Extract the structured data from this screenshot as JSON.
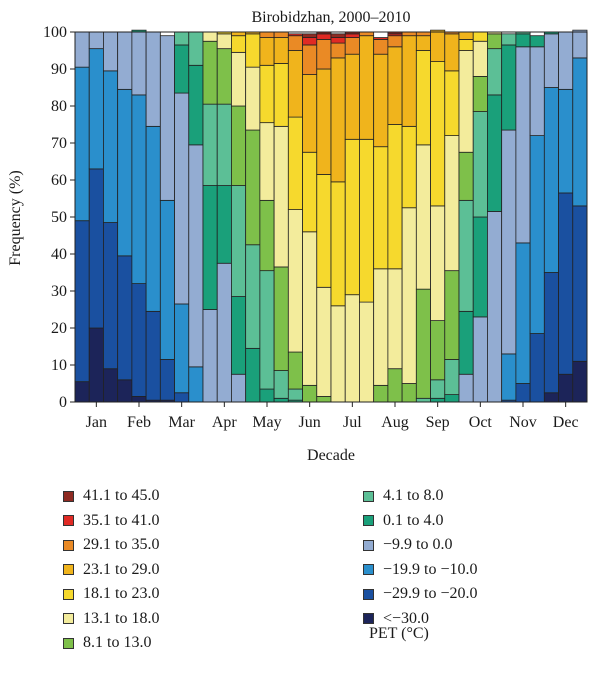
{
  "chart_data": {
    "type": "bar",
    "stacked": true,
    "title": "Birobidzhan, 2000–2010",
    "xlabel": "Decade",
    "ylabel": "Frequency (%)",
    "ylim": [
      0,
      100
    ],
    "yticks": [
      0,
      10,
      20,
      30,
      40,
      50,
      60,
      70,
      80,
      90,
      100
    ],
    "month_labels": [
      "Jan",
      "Feb",
      "Mar",
      "Apr",
      "May",
      "Jun",
      "Jul",
      "Aug",
      "Sep",
      "Oct",
      "Nov",
      "Dec"
    ],
    "categories": [
      "Jan-1",
      "Jan-2",
      "Jan-3",
      "Feb-1",
      "Feb-2",
      "Feb-3",
      "Mar-1",
      "Mar-2",
      "Mar-3",
      "Apr-1",
      "Apr-2",
      "Apr-3",
      "May-1",
      "May-2",
      "May-3",
      "Jun-1",
      "Jun-2",
      "Jun-3",
      "Jul-1",
      "Jul-2",
      "Jul-3",
      "Aug-1",
      "Aug-2",
      "Aug-3",
      "Sep-1",
      "Sep-2",
      "Sep-3",
      "Oct-1",
      "Oct-2",
      "Oct-3",
      "Nov-1",
      "Nov-2",
      "Nov-3",
      "Dec-1",
      "Dec-2",
      "Dec-3"
    ],
    "legend_note": "PET (°C)",
    "series": [
      {
        "name": "<−30.0",
        "color": "#1c2459",
        "values": [
          5.5,
          20,
          9,
          6,
          1.5,
          0.5,
          0.5,
          0,
          0,
          0,
          0,
          0,
          0,
          0,
          0,
          0,
          0,
          0,
          0,
          0,
          0,
          0,
          0,
          0,
          0,
          0,
          0,
          0,
          0,
          0,
          0,
          0,
          0,
          2.5,
          7.5,
          11
        ]
      },
      {
        "name": "−29.9 to −20.0",
        "color": "#1a50a0",
        "values": [
          43.5,
          43,
          39.5,
          33.5,
          30.5,
          24,
          11,
          2.5,
          0,
          0,
          0,
          0,
          0,
          0,
          0,
          0,
          0,
          0,
          0,
          0,
          0,
          0,
          0,
          0,
          0,
          0,
          0,
          0,
          0,
          0,
          0.5,
          5,
          18.5,
          32.5,
          49,
          42
        ]
      },
      {
        "name": "−19.9 to −10.0",
        "color": "#2a8fcc",
        "values": [
          41.5,
          32.5,
          41,
          45,
          51,
          50,
          43,
          24,
          9.5,
          0,
          0,
          0,
          0,
          0,
          0,
          0,
          0,
          0,
          0,
          0,
          0,
          0,
          0,
          0,
          0,
          0,
          0,
          0,
          0,
          0,
          12.5,
          38,
          53.5,
          50,
          28,
          40
        ]
      },
      {
        "name": "−9.9 to 0.0",
        "color": "#93acd2",
        "values": [
          9.5,
          4.5,
          10.5,
          15.5,
          17,
          25.5,
          44.5,
          57,
          60,
          25,
          37.5,
          7.5,
          0,
          0,
          0,
          0,
          0,
          0,
          0,
          0,
          0,
          0,
          0,
          0,
          0,
          0,
          0,
          7.5,
          23,
          51.5,
          60.5,
          53,
          24,
          14.5,
          15.5,
          7.5
        ]
      },
      {
        "name": "0.1 to 4.0",
        "color": "#1aa07a",
        "values": [
          0,
          0,
          0,
          0,
          0.5,
          0,
          0,
          13,
          21.5,
          33.5,
          21,
          21,
          14.5,
          3.5,
          1,
          0.5,
          0,
          0,
          0,
          0,
          0,
          0,
          0,
          0,
          0,
          1,
          2,
          17,
          27,
          31.5,
          23,
          3.5,
          3,
          0.5,
          0,
          0
        ]
      },
      {
        "name": "4.1 to 8.0",
        "color": "#5cbf96",
        "values": [
          0,
          0,
          0,
          0,
          0,
          0,
          0,
          3.5,
          9,
          22,
          22,
          30,
          28,
          32,
          7.5,
          3,
          0,
          0,
          0,
          0,
          0,
          0,
          0,
          0,
          1,
          5,
          9.5,
          30,
          28.5,
          12.5,
          3,
          0.5,
          0,
          0,
          0,
          0
        ]
      },
      {
        "name": "8.1 to 13.0",
        "color": "#7ec04a",
        "values": [
          0,
          0,
          0,
          0,
          0,
          0,
          0,
          0,
          0,
          17,
          15,
          21.5,
          31,
          19,
          28,
          10,
          4.5,
          1.5,
          0,
          0,
          0,
          4.5,
          9,
          5,
          29.5,
          16,
          24,
          13,
          9.5,
          4,
          0,
          0,
          0,
          0,
          0,
          0
        ]
      },
      {
        "name": "13.1 to 18.0",
        "color": "#f3ec9c",
        "values": [
          0,
          0,
          0,
          0,
          0,
          0,
          0,
          0,
          0,
          2.5,
          4,
          14.5,
          17,
          21,
          38,
          38.5,
          41.5,
          29.5,
          26,
          29,
          27,
          31.5,
          27,
          47.5,
          39,
          31,
          36.5,
          27.5,
          9.5,
          0.5,
          0,
          0,
          0,
          0,
          0,
          0
        ]
      },
      {
        "name": "18.1 to 23.0",
        "color": "#f6d92d",
        "values": [
          0,
          0,
          0,
          0,
          0,
          0,
          0,
          0,
          0,
          0,
          0.5,
          4.5,
          9,
          15.5,
          17,
          25,
          21.5,
          30.5,
          33.5,
          42,
          44,
          33,
          39,
          22,
          25.5,
          39,
          17.5,
          3,
          2.5,
          0,
          0,
          0,
          0,
          0,
          0,
          0
        ]
      },
      {
        "name": "23.1 to 29.0",
        "color": "#f0b41c",
        "values": [
          0,
          0,
          0,
          0,
          0,
          0,
          0,
          0,
          0,
          0,
          0,
          1,
          0.5,
          7.5,
          7,
          18,
          21,
          28.5,
          33.5,
          23,
          28,
          25,
          21,
          24.5,
          4,
          8.5,
          10,
          2,
          0,
          0,
          0,
          0,
          0,
          0,
          0,
          0
        ]
      },
      {
        "name": "29.1 to 35.0",
        "color": "#ea8a25",
        "values": [
          0,
          0,
          0,
          0,
          0,
          0,
          0,
          0,
          0,
          0,
          0,
          0,
          0,
          1.5,
          1.5,
          4,
          8,
          8,
          4,
          4.5,
          1,
          4,
          3,
          1,
          1,
          0,
          0.5,
          0,
          0,
          0,
          0,
          0,
          0,
          0,
          0,
          0
        ]
      },
      {
        "name": "35.1 to 41.0",
        "color": "#e02a24",
        "values": [
          0,
          0,
          0,
          0,
          0,
          0,
          0,
          0,
          0,
          0,
          0,
          0,
          0,
          0,
          0,
          0.5,
          2,
          1.5,
          1.5,
          1,
          0,
          0.5,
          0.5,
          0,
          0,
          0,
          0,
          0,
          0,
          0,
          0,
          0,
          0,
          0,
          0,
          0
        ]
      },
      {
        "name": "41.1 to 45.0",
        "color": "#8e2a22",
        "values": [
          0,
          0,
          0,
          0,
          0,
          0,
          0,
          0,
          0,
          0,
          0,
          0,
          0,
          0,
          0,
          0,
          1,
          0.5,
          1,
          0.5,
          0,
          0,
          0.5,
          0,
          0,
          0,
          0,
          0,
          0,
          0,
          0,
          0,
          0,
          0,
          0,
          0
        ]
      }
    ],
    "legend": {
      "left_column": [
        "41.1 to 45.0",
        "35.1 to 41.0",
        "29.1 to 35.0",
        "23.1 to 29.0",
        "18.1 to 23.0",
        "13.1 to 18.0",
        "8.1 to 13.0"
      ],
      "right_column": [
        "4.1 to 8.0",
        "0.1 to 4.0",
        "−9.9 to 0.0",
        "−19.9 to −10.0",
        "−29.9 to −20.0",
        "<−30.0"
      ]
    }
  }
}
